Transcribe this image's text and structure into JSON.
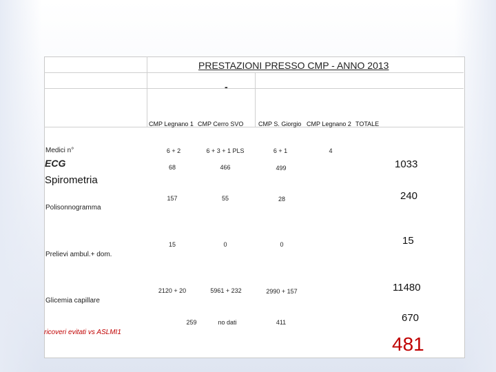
{
  "title": "PRESTAZIONI PRESSO CMP - ANNO 2013",
  "subtitle_dash": "-",
  "headers": {
    "cmp_legnano_1": "CMP Legnano 1",
    "cmp_cerro": "CMP Cerro SVO",
    "cmp_sgiorgio": "CMP S. Giorgio",
    "cmp_legnano_2": "CMP Legnano 2",
    "totale": "TOTALE"
  },
  "rows": {
    "medici": {
      "label": "Medici n°",
      "legnano1": "6 + 2",
      "cerro": "6 + 3 + 1 PLS",
      "sgiorgio": "6 + 1",
      "legnano2": "4"
    },
    "ecg": {
      "label": "ECG",
      "legnano1": "68",
      "cerro": "466",
      "sgiorgio": "499",
      "total": "1033"
    },
    "spirometria": {
      "label": "Spirometria",
      "legnano1": "157",
      "cerro": "55",
      "sgiorgio": "28",
      "total": "240"
    },
    "polisonnogramma": {
      "label": "Polisonnogramma",
      "legnano1": "15",
      "cerro": "0",
      "sgiorgio": "0",
      "total": "15"
    },
    "prelievi": {
      "label": "Prelievi ambul.+ dom.",
      "legnano1": "2120 + 20",
      "cerro": "5961 + 232",
      "sgiorgio": "2990 + 157",
      "total": "11480"
    },
    "glicemia": {
      "label": "Glicemia capillare",
      "legnano1": "259",
      "cerro": "no dati",
      "sgiorgio": "411",
      "total": "670"
    },
    "ricoveri": {
      "label": "ricoveri evitati vs ASLMI1",
      "total": "481"
    }
  },
  "colors": {
    "accent_red": "#c00000"
  }
}
